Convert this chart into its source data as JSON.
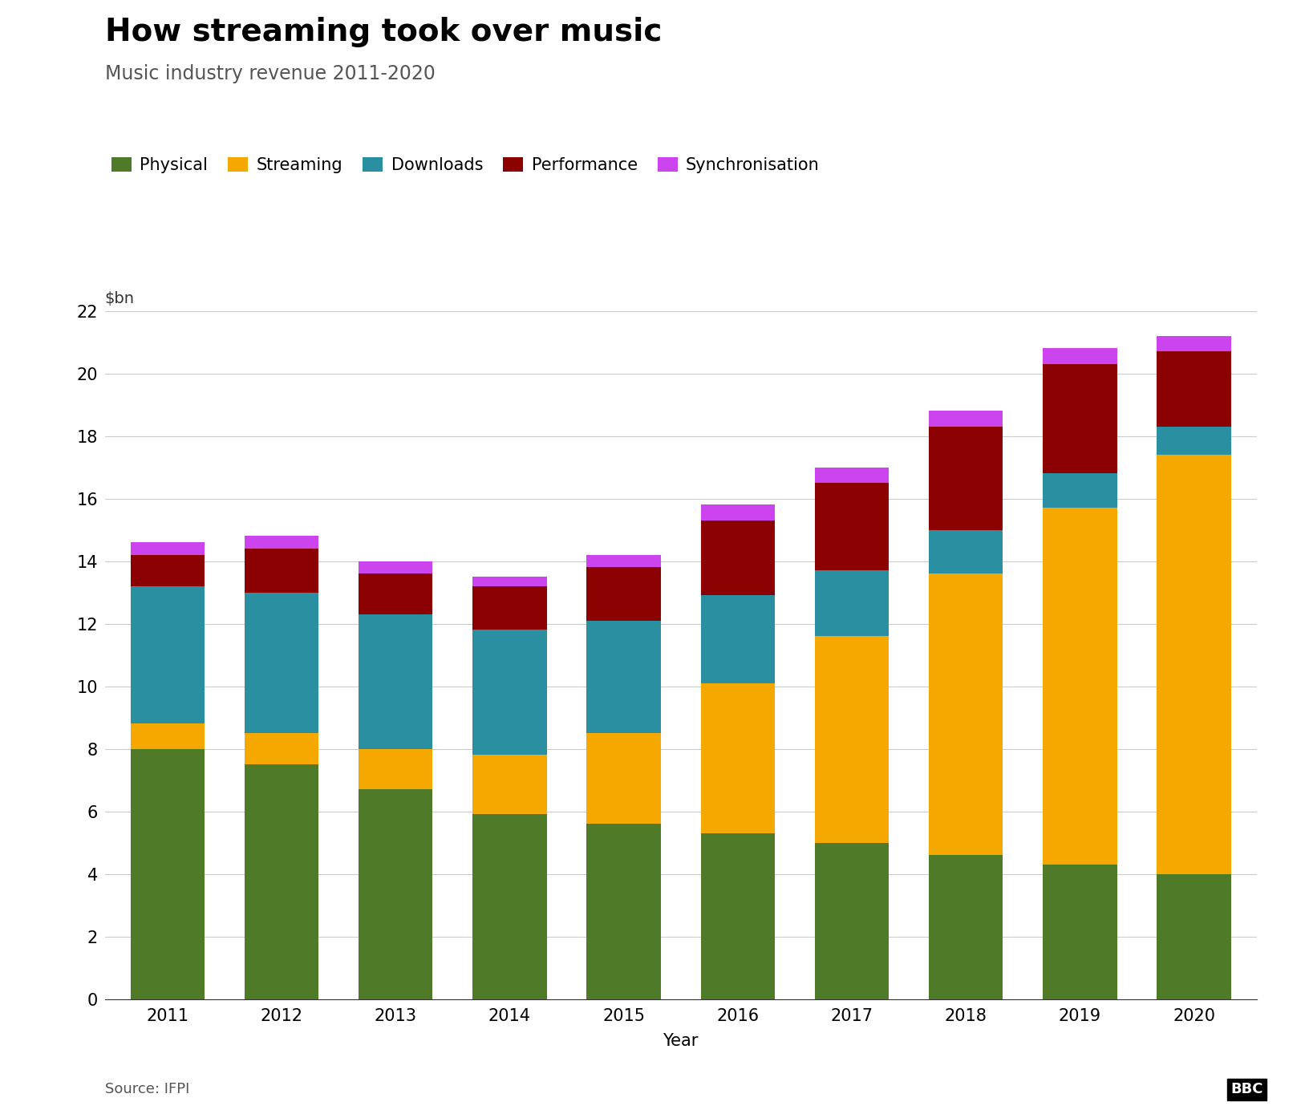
{
  "title": "How streaming took over music",
  "subtitle": "Music industry revenue 2011-2020",
  "xlabel": "Year",
  "ylabel": "$bn",
  "source": "Source: IFPI",
  "bbc_logo": "BBC",
  "years": [
    2011,
    2012,
    2013,
    2014,
    2015,
    2016,
    2017,
    2018,
    2019,
    2020
  ],
  "categories": [
    "Physical",
    "Streaming",
    "Downloads",
    "Performance",
    "Synchronisation"
  ],
  "colors": [
    "#4f7a28",
    "#f5a800",
    "#2a8fa0",
    "#8b0000",
    "#cc44ee"
  ],
  "data": {
    "Physical": [
      8.0,
      7.5,
      6.7,
      5.9,
      5.6,
      5.3,
      5.0,
      4.6,
      4.3,
      4.0
    ],
    "Streaming": [
      0.8,
      1.0,
      1.3,
      1.9,
      2.9,
      4.8,
      6.6,
      9.0,
      11.4,
      13.4
    ],
    "Downloads": [
      4.4,
      4.5,
      4.3,
      4.0,
      3.6,
      2.8,
      2.1,
      1.4,
      1.1,
      0.9
    ],
    "Performance": [
      1.0,
      1.4,
      1.3,
      1.4,
      1.7,
      2.4,
      2.8,
      3.3,
      3.5,
      2.4
    ],
    "Synchronisation": [
      0.4,
      0.4,
      0.4,
      0.3,
      0.4,
      0.5,
      0.5,
      0.5,
      0.5,
      0.5
    ]
  },
  "ylim": [
    0,
    22
  ],
  "yticks": [
    0,
    2,
    4,
    6,
    8,
    10,
    12,
    14,
    16,
    18,
    20,
    22
  ],
  "background_color": "#ffffff",
  "title_fontsize": 28,
  "subtitle_fontsize": 17,
  "legend_fontsize": 15,
  "tick_fontsize": 15,
  "axis_label_fontsize": 15,
  "ylabel_fontsize": 14,
  "bar_width": 0.65
}
